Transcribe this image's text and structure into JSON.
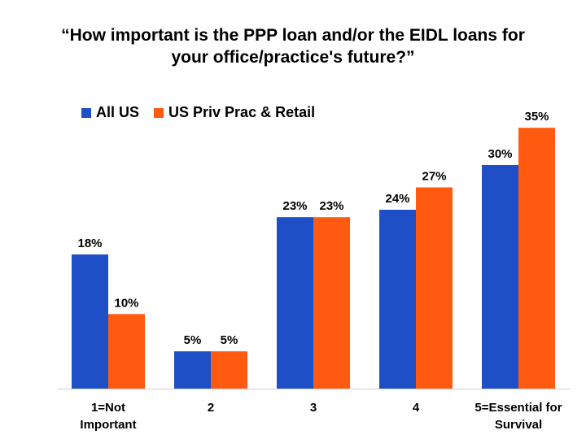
{
  "chart_data": {
    "type": "bar",
    "title": "“How important is the PPP loan and/or the EIDL loans for your office/practice's future?”",
    "title_lines": [
      "“How important is the PPP loan and/or the EIDL loans for",
      "your office/practice's future?”"
    ],
    "categories": [
      [
        "1=Not",
        "Important"
      ],
      [
        "2"
      ],
      [
        "3"
      ],
      [
        "4"
      ],
      [
        "5=Essential for",
        "Survival"
      ]
    ],
    "series": [
      {
        "name": "All US",
        "color": "#1f4fc6",
        "values": [
          18,
          5,
          23,
          24,
          30
        ],
        "labels": [
          "18%",
          "5%",
          "23%",
          "24%",
          "30%"
        ]
      },
      {
        "name": "US Priv Prac & Retail",
        "color": "#ff5a0f",
        "values": [
          10,
          5,
          23,
          27,
          35
        ],
        "labels": [
          "10%",
          "5%",
          "23%",
          "27%",
          "35%"
        ]
      }
    ],
    "ylim": [
      0,
      36
    ],
    "grid": false,
    "legend_position": "top-left"
  }
}
